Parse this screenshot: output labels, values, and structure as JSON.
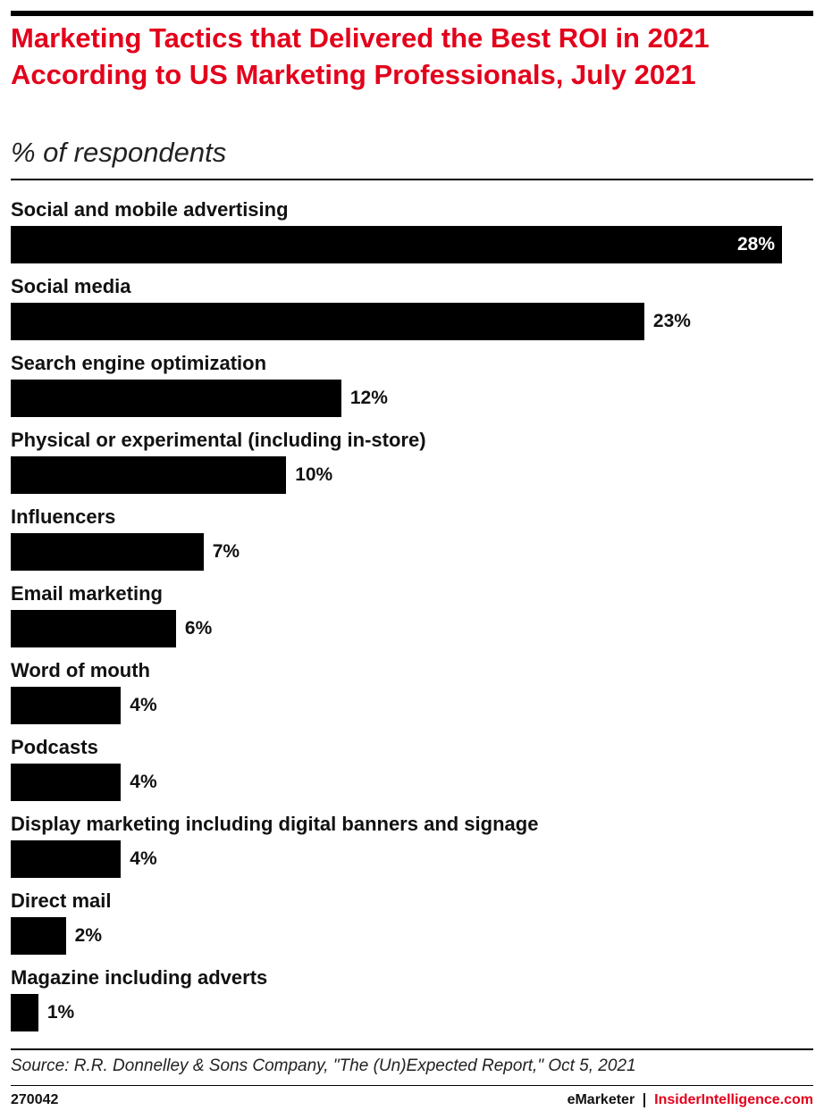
{
  "chart_data": {
    "type": "bar",
    "orientation": "horizontal",
    "title": "Marketing Tactics that Delivered the Best ROI in 2021 According to US Marketing Professionals, July 2021",
    "subtitle": "% of respondents",
    "categories": [
      "Social and mobile advertising",
      "Social media",
      "Search engine optimization",
      "Physical or experimental (including in-store)",
      "Influencers",
      "Email marketing",
      "Word of mouth",
      "Podcasts",
      "Display marketing including digital banners and signage",
      "Direct mail",
      "Magazine including adverts"
    ],
    "values": [
      28,
      23,
      12,
      10,
      7,
      6,
      4,
      4,
      4,
      2,
      1
    ],
    "value_labels": [
      "28%",
      "23%",
      "12%",
      "10%",
      "7%",
      "6%",
      "4%",
      "4%",
      "4%",
      "2%",
      "1%"
    ],
    "color": "#000000",
    "source": "Source: R.R. Donnelley & Sons Company, \"The (Un)Expected Report,\" Oct 5, 2021",
    "chart_id": "270042",
    "brand": "eMarketer",
    "site": "InsiderIntelligence.com"
  }
}
